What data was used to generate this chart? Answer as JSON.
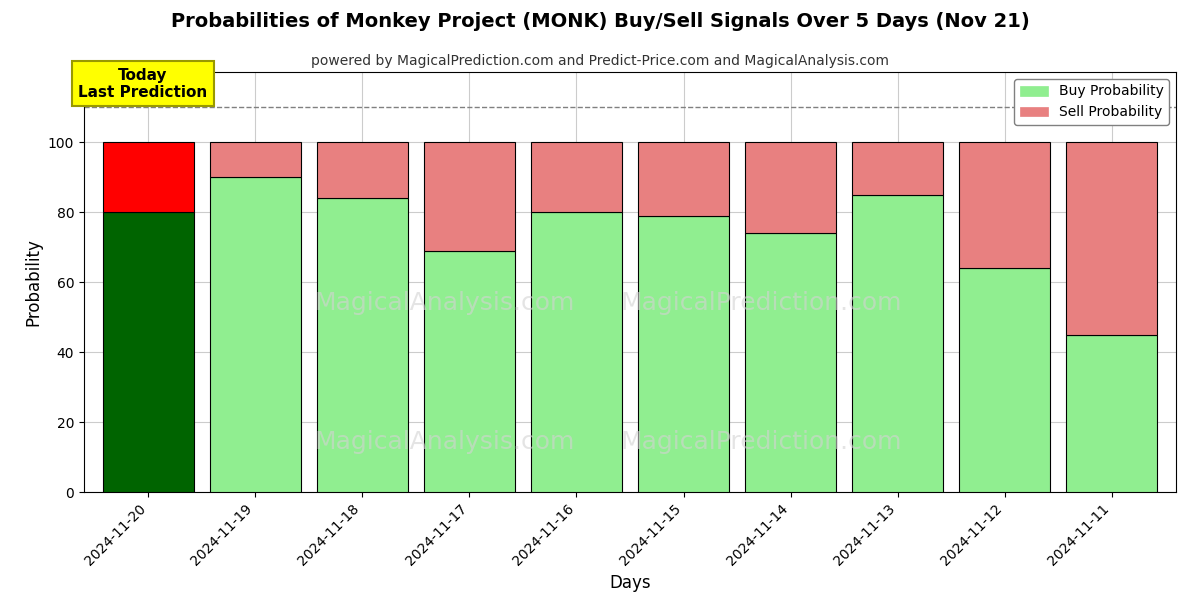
{
  "title": "Probabilities of Monkey Project (MONK) Buy/Sell Signals Over 5 Days (Nov 21)",
  "subtitle": "powered by MagicalPrediction.com and Predict-Price.com and MagicalAnalysis.com",
  "xlabel": "Days",
  "ylabel": "Probability",
  "days": [
    "2024-11-20",
    "2024-11-19",
    "2024-11-18",
    "2024-11-17",
    "2024-11-16",
    "2024-11-15",
    "2024-11-14",
    "2024-11-13",
    "2024-11-12",
    "2024-11-11"
  ],
  "buy_probs": [
    80,
    90,
    84,
    69,
    80,
    79,
    74,
    85,
    64,
    45
  ],
  "sell_probs": [
    20,
    10,
    16,
    31,
    20,
    21,
    26,
    15,
    36,
    55
  ],
  "buy_colors": [
    "#006400",
    "#90EE90",
    "#90EE90",
    "#90EE90",
    "#90EE90",
    "#90EE90",
    "#90EE90",
    "#90EE90",
    "#90EE90",
    "#90EE90"
  ],
  "sell_colors": [
    "#FF0000",
    "#E88080",
    "#E88080",
    "#E88080",
    "#E88080",
    "#E88080",
    "#E88080",
    "#E88080",
    "#E88080",
    "#E88080"
  ],
  "today_label": "Today\nLast Prediction",
  "today_label_color": "#FFFF00",
  "legend_buy_color": "#90EE90",
  "legend_sell_color": "#E88080",
  "dashed_line_y": 110,
  "ylim": [
    0,
    120
  ],
  "yticks": [
    0,
    20,
    40,
    60,
    80,
    100
  ],
  "watermark1": "MagicalAnalysis.com",
  "watermark2": "MagicalPrediction.com",
  "bg_color": "#ffffff",
  "grid_color": "#cccccc",
  "bar_edge_color": "#000000",
  "bar_width": 0.85
}
